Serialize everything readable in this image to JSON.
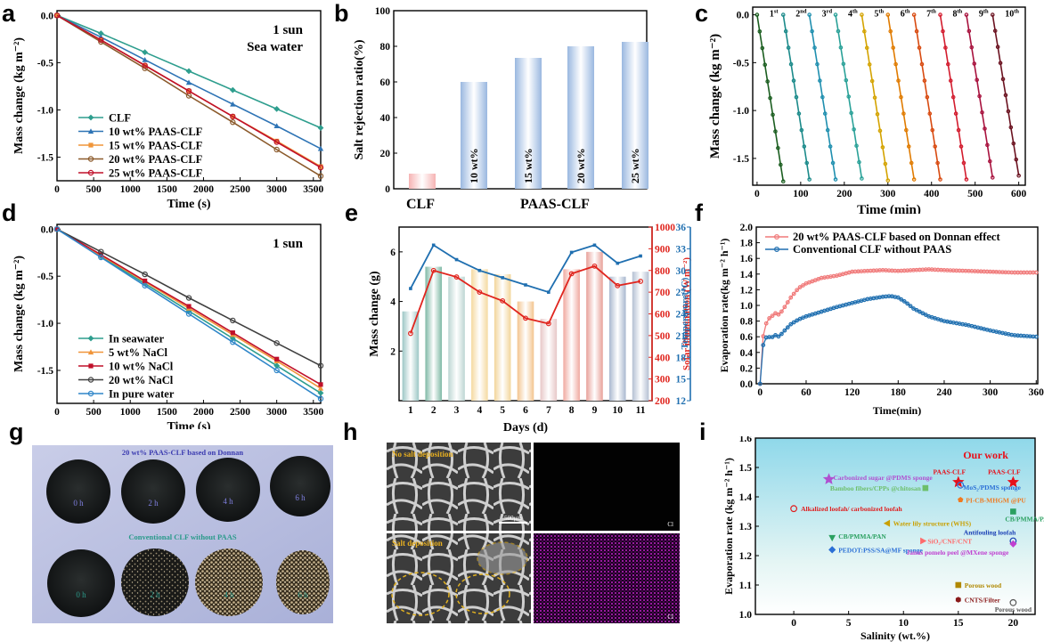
{
  "chart_data": [
    {
      "panel": "a",
      "type": "line",
      "annotation": [
        "1 sun",
        "Sea water"
      ],
      "xlabel": "Time (s)",
      "ylabel": "Mass change (kg m⁻²)",
      "xlim": [
        0,
        3600
      ],
      "ylim": [
        -1.75,
        0.05
      ],
      "xticks": [
        0,
        500,
        1000,
        1500,
        2000,
        2500,
        3000,
        3500
      ],
      "yticks": [
        0.0,
        -0.5,
        -1.0,
        -1.5
      ],
      "legend": "bottom-left",
      "x": [
        0,
        600,
        1200,
        1800,
        2400,
        3000,
        3600
      ],
      "series": [
        {
          "name": "CLF",
          "color": "#2e9e8e",
          "marker": "diamond",
          "values": [
            0,
            -0.19,
            -0.39,
            -0.59,
            -0.79,
            -0.99,
            -1.19
          ]
        },
        {
          "name": "10 wt% PAAS-CLF",
          "color": "#2e74b5",
          "marker": "triangle",
          "values": [
            0,
            -0.23,
            -0.47,
            -0.71,
            -0.94,
            -1.17,
            -1.41
          ]
        },
        {
          "name": "15 wt% PAAS-CLF",
          "color": "#f0953a",
          "marker": "square",
          "values": [
            0,
            -0.26,
            -0.53,
            -0.8,
            -1.07,
            -1.33,
            -1.6
          ]
        },
        {
          "name": "20 wt% PAAS-CLF",
          "color": "#8b5a2b",
          "marker": "circle",
          "values": [
            0,
            -0.28,
            -0.56,
            -0.85,
            -1.13,
            -1.42,
            -1.7
          ]
        },
        {
          "name": "25 wt% PAAS-CLF",
          "color": "#c0102a",
          "marker": "circle",
          "values": [
            0,
            -0.26,
            -0.53,
            -0.8,
            -1.07,
            -1.34,
            -1.61
          ]
        }
      ]
    },
    {
      "panel": "b",
      "type": "bar",
      "ylabel": "Salt rejection ratio(%)",
      "ylim": [
        0,
        100
      ],
      "yticks": [
        0,
        20,
        40,
        60,
        80,
        100
      ],
      "categories": [
        "CLF",
        "10 wt%",
        "15 wt%",
        "20 wt%",
        "25 wt%"
      ],
      "values": [
        8.5,
        60,
        73.5,
        80,
        82.5
      ],
      "group_labels": [
        "CLF",
        "PAAS-CLF"
      ],
      "colors": [
        "#f6b3b3",
        "#9ab8e0"
      ]
    },
    {
      "panel": "c",
      "type": "line",
      "xlabel": "Time (min)",
      "ylabel": "Mass change (kg m⁻²)",
      "xlim": [
        -10,
        615
      ],
      "ylim": [
        -1.78,
        0.08
      ],
      "xticks": [
        0,
        100,
        200,
        300,
        400,
        500,
        600
      ],
      "yticks": [
        0.0,
        -0.5,
        -1.0,
        -1.5
      ],
      "cycles": [
        "1st",
        "2nd",
        "3rd",
        "4th",
        "5th",
        "6th",
        "7th",
        "8th",
        "9th",
        "10th"
      ],
      "cycle_colors": [
        "#1b5e20",
        "#1b8a8a",
        "#1f8faf",
        "#2aa198",
        "#d4a300",
        "#e07b00",
        "#d84a10",
        "#d31c2e",
        "#a8123e",
        "#6b1220"
      ],
      "cycle_start": [
        0,
        60,
        120,
        180,
        240,
        300,
        360,
        420,
        480,
        540
      ],
      "cycle_duration": 60,
      "cycle_end_value": [
        -1.74,
        -1.72,
        -1.72,
        -1.71,
        -1.73,
        -1.72,
        -1.72,
        -1.72,
        -1.7,
        -1.68
      ]
    },
    {
      "panel": "d",
      "type": "line",
      "annotation": [
        "1 sun"
      ],
      "xlabel": "Time (s)",
      "ylabel": "Mass change (kg m⁻²)",
      "xlim": [
        0,
        3600
      ],
      "ylim": [
        -1.85,
        0.05
      ],
      "xticks": [
        0,
        500,
        1000,
        1500,
        2000,
        2500,
        3000,
        3500
      ],
      "yticks": [
        0.0,
        -0.5,
        -1.0,
        -1.5
      ],
      "legend": "bottom-left",
      "x": [
        0,
        600,
        1200,
        1800,
        2400,
        3000,
        3600
      ],
      "series": [
        {
          "name": "In seawater",
          "color": "#2e9e8e",
          "marker": "diamond",
          "values": [
            0,
            -0.29,
            -0.58,
            -0.87,
            -1.16,
            -1.45,
            -1.74
          ]
        },
        {
          "name": "5 wt% NaCl",
          "color": "#f0953a",
          "marker": "triangle",
          "values": [
            0,
            -0.28,
            -0.56,
            -0.84,
            -1.12,
            -1.4,
            -1.69
          ]
        },
        {
          "name": "10 wt% NaCl",
          "color": "#c0102a",
          "marker": "square",
          "values": [
            0,
            -0.27,
            -0.55,
            -0.82,
            -1.1,
            -1.38,
            -1.65
          ]
        },
        {
          "name": "20 wt% NaCl",
          "color": "#404040",
          "marker": "circle",
          "values": [
            0,
            -0.24,
            -0.48,
            -0.73,
            -0.97,
            -1.21,
            -1.45
          ]
        },
        {
          "name": "In pure water",
          "color": "#2f86c9",
          "marker": "circle",
          "values": [
            0,
            -0.3,
            -0.6,
            -0.9,
            -1.2,
            -1.5,
            -1.8
          ]
        }
      ]
    },
    {
      "panel": "e",
      "type": "bar",
      "xlabel": "Days (d)",
      "ylabel": "Mass change (g)",
      "y2label": "Solar illumination (W m⁻²)",
      "y3label": "Temperature(°C)",
      "categories": [
        "1",
        "2",
        "3",
        "4",
        "5",
        "6",
        "7",
        "8",
        "9",
        "10",
        "11"
      ],
      "ylim": [
        0,
        7
      ],
      "yticks": [
        2,
        4,
        6
      ],
      "y2lim": [
        200,
        1000
      ],
      "y2ticks": [
        200,
        300,
        400,
        500,
        600,
        700,
        800,
        900,
        1000
      ],
      "y3lim": [
        12,
        36
      ],
      "y3ticks": [
        12,
        15,
        18,
        21,
        24,
        27,
        30,
        33,
        36
      ],
      "bar_values": [
        3.6,
        5.4,
        5.0,
        5.3,
        5.1,
        4.0,
        3.3,
        5.3,
        6.0,
        5.0,
        5.2
      ],
      "bar_colors": [
        "#9cc7c5",
        "#7fb9a6",
        "#bdd6d3",
        "#f5d9a0",
        "#f2d59a",
        "#f3c48e",
        "#e7c7c7",
        "#f0a9a0",
        "#e8a199",
        "#a9b8cf",
        "#b5c0d3"
      ],
      "solar_values": [
        510,
        800,
        770,
        700,
        660,
        580,
        555,
        785,
        820,
        730,
        750
      ],
      "temperature_values": [
        27.5,
        33.5,
        31.5,
        30,
        29,
        28,
        27,
        32.5,
        33.5,
        31,
        32
      ]
    },
    {
      "panel": "f",
      "type": "line",
      "xlabel": "Time(min)",
      "ylabel": "Evaporation rate(kg m⁻² h⁻¹)",
      "xlim": [
        -5,
        362
      ],
      "ylim": [
        0,
        2.0
      ],
      "xticks": [
        0,
        60,
        120,
        180,
        240,
        300,
        360
      ],
      "yticks": [
        0.0,
        0.2,
        0.4,
        0.6,
        0.8,
        1.0,
        1.2,
        1.4,
        1.6,
        1.8,
        2.0
      ],
      "legend": "top-left",
      "series": [
        {
          "name": "20 wt% PAAS-CLF based on Donnan effect",
          "color": "#f07a7a",
          "x": [
            0,
            3,
            6,
            10,
            15,
            20,
            25,
            30,
            40,
            50,
            60,
            80,
            100,
            120,
            140,
            160,
            180,
            200,
            220,
            240,
            270,
            300,
            330,
            360
          ],
          "values": [
            0.0,
            0.55,
            0.72,
            0.82,
            0.86,
            0.9,
            0.88,
            0.95,
            1.1,
            1.22,
            1.28,
            1.35,
            1.38,
            1.43,
            1.44,
            1.45,
            1.44,
            1.45,
            1.46,
            1.45,
            1.44,
            1.43,
            1.42,
            1.42
          ]
        },
        {
          "name": "Conventional CLF without PAAS",
          "color": "#1f6fb0",
          "x": [
            0,
            3,
            6,
            10,
            15,
            20,
            25,
            30,
            40,
            50,
            60,
            80,
            100,
            120,
            140,
            160,
            170,
            180,
            190,
            200,
            220,
            240,
            270,
            300,
            330,
            360
          ],
          "values": [
            0.0,
            0.45,
            0.58,
            0.6,
            0.59,
            0.62,
            0.6,
            0.66,
            0.76,
            0.82,
            0.86,
            0.92,
            0.98,
            1.03,
            1.08,
            1.11,
            1.12,
            1.1,
            1.04,
            0.96,
            0.86,
            0.8,
            0.75,
            0.68,
            0.62,
            0.6
          ]
        }
      ]
    },
    {
      "panel": "i",
      "type": "scatter",
      "title": "Our work",
      "xlabel": "Salinity (wt.%)",
      "ylabel": "Evaporation rate (kg m⁻² h⁻¹)",
      "xlim": [
        -3.5,
        22
      ],
      "ylim": [
        1.0,
        1.6
      ],
      "xticks": [
        0,
        5,
        10,
        15,
        20
      ],
      "yticks": [
        1.0,
        1.1,
        1.2,
        1.3,
        1.4,
        1.5,
        1.6
      ],
      "points": [
        {
          "label": "PAAS-CLF",
          "x": 15,
          "y": 1.45,
          "color": "#e8101a",
          "marker": "star"
        },
        {
          "label": "PAAS-CLF",
          "x": 20,
          "y": 1.45,
          "color": "#e8101a",
          "marker": "star"
        },
        {
          "label": "Carbonized sugar @PDMS sponge",
          "x": 3.2,
          "y": 1.46,
          "color": "#b04fd0",
          "marker": "star"
        },
        {
          "label": "Bamboo fibers/CPPs @chitosan",
          "x": 12,
          "y": 1.43,
          "color": "#6dbf6a",
          "marker": "square"
        },
        {
          "label": "MoS₂/PDMS sponge",
          "x": 15.2,
          "y": 1.44,
          "color": "#2a6fd6",
          "marker": "circle"
        },
        {
          "label": "PI-CB-MHGM @PU",
          "x": 15.2,
          "y": 1.39,
          "color": "#f07a20",
          "marker": "pentagon"
        },
        {
          "label": "Alkalized loofah/ carbonized loofah",
          "x": 0,
          "y": 1.36,
          "color": "#e01d1d",
          "marker": "circle"
        },
        {
          "label": "CB/PMMA/PAN",
          "x": 20,
          "y": 1.35,
          "color": "#2aa060",
          "marker": "square"
        },
        {
          "label": "Water lily structure (WHS)",
          "x": 8.5,
          "y": 1.31,
          "color": "#c9a000",
          "marker": "triangle-left"
        },
        {
          "label": "CB/PMMA/PAN",
          "x": 3.5,
          "y": 1.26,
          "color": "#2aa060",
          "marker": "triangle-down"
        },
        {
          "label": "SiO₂/CNF/CNT",
          "x": 11.8,
          "y": 1.25,
          "color": "#ff6b6b",
          "marker": "triangle-right"
        },
        {
          "label": "Antifouling loofah",
          "x": 20,
          "y": 1.25,
          "color": "#1a3fb5",
          "marker": "circle"
        },
        {
          "label": "PEDOT:PSS/SA@MF sponge",
          "x": 3.5,
          "y": 1.22,
          "color": "#2a6fd6",
          "marker": "diamond"
        },
        {
          "label": "Janus pomelo peel @MXene sponge",
          "x": 20,
          "y": 1.24,
          "color": "#c040d0",
          "marker": "diamond"
        },
        {
          "label": "Porous wood",
          "x": 15,
          "y": 1.1,
          "color": "#b08800",
          "marker": "square"
        },
        {
          "label": "CNTS/Filter",
          "x": 15,
          "y": 1.05,
          "color": "#8a1a1a",
          "marker": "hexagon"
        },
        {
          "label": "Porous wood",
          "x": 20,
          "y": 1.04,
          "color": "#555555",
          "marker": "circle"
        }
      ]
    }
  ],
  "panel_letters": [
    "a",
    "b",
    "c",
    "d",
    "e",
    "f",
    "g",
    "h",
    "i"
  ],
  "photo_g": {
    "top_caption": "20 wt% PAAS-CLF based on Donnan",
    "bottom_caption": "Conventional CLF without PAAS",
    "time_labels": [
      "0 h",
      "2 h",
      "4 h",
      "6 h"
    ],
    "bottom_time_labels": [
      "0 h",
      "2 h",
      "4 h",
      "6 h"
    ]
  },
  "photo_h": {
    "top_label": "No salt deposition",
    "bottom_label": "Salt deposition",
    "scale_bar": "500μm",
    "element": "Cl"
  }
}
